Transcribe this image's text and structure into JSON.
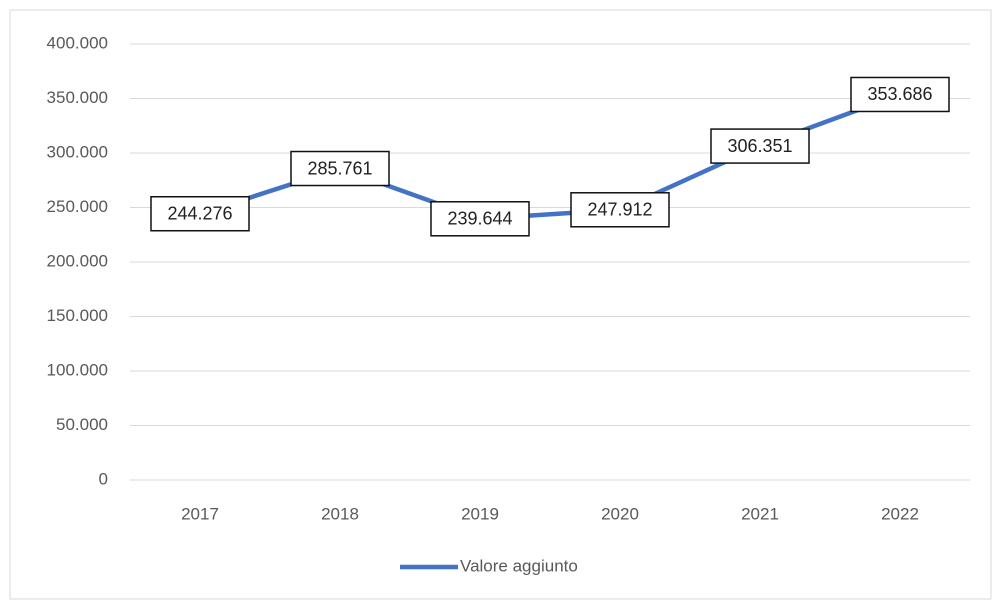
{
  "chart_data": {
    "type": "line",
    "categories": [
      "2017",
      "2018",
      "2019",
      "2020",
      "2021",
      "2022"
    ],
    "series": [
      {
        "name": "Valore aggiunto",
        "color": "#4472c4",
        "values": [
          244276,
          285761,
          239644,
          247912,
          306351,
          353686
        ],
        "value_labels": [
          "244.276",
          "285.761",
          "239.644",
          "247.912",
          "306.351",
          "353.686"
        ]
      }
    ],
    "ylim": [
      0,
      400000
    ],
    "yticks": [
      0,
      {
        "value": 50000,
        "label": "50.000"
      },
      {
        "value": 100000,
        "label": "100.000"
      },
      {
        "value": 150000,
        "label": "150.000"
      },
      {
        "value": 200000,
        "label": "200.000"
      },
      {
        "value": 250000,
        "label": "250.000"
      },
      {
        "value": 300000,
        "label": "300.000"
      },
      {
        "value": 350000,
        "label": "350.000"
      },
      {
        "value": 400000,
        "label": "400.000"
      }
    ],
    "grid": true,
    "legend": "bottom"
  }
}
